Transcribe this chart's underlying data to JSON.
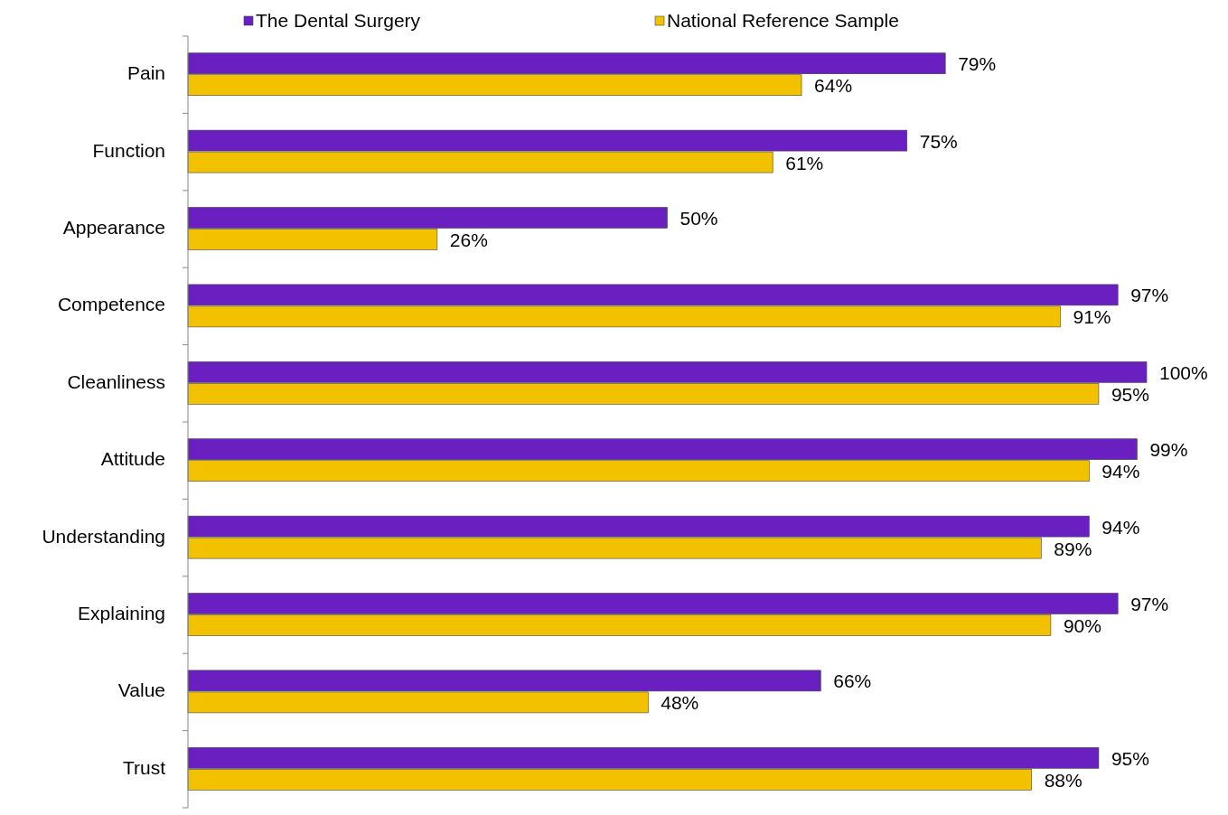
{
  "chart_data": {
    "type": "bar",
    "orientation": "horizontal",
    "categories": [
      "Pain",
      "Function",
      "Appearance",
      "Competence",
      "Cleanliness",
      "Attitude",
      "Understanding",
      "Explaining",
      "Value",
      "Trust"
    ],
    "series": [
      {
        "name": "The Dental Surgery",
        "color": "#6a1fc0",
        "values": [
          79,
          75,
          50,
          97,
          100,
          99,
          94,
          97,
          66,
          95
        ],
        "value_labels": [
          "79%",
          "75%",
          "50%",
          "97%",
          "100%",
          "99%",
          "94%",
          "97%",
          "66%",
          "95%"
        ]
      },
      {
        "name": "National Reference Sample",
        "color": "#f2c200",
        "values": [
          64,
          61,
          26,
          91,
          95,
          94,
          89,
          90,
          48,
          88
        ],
        "value_labels": [
          "64%",
          "61%",
          "26%",
          "91%",
          "95%",
          "94%",
          "89%",
          "90%",
          "48%",
          "88%"
        ]
      }
    ],
    "xlim": [
      0,
      100
    ],
    "tick_labels": "y",
    "legend": "top"
  }
}
